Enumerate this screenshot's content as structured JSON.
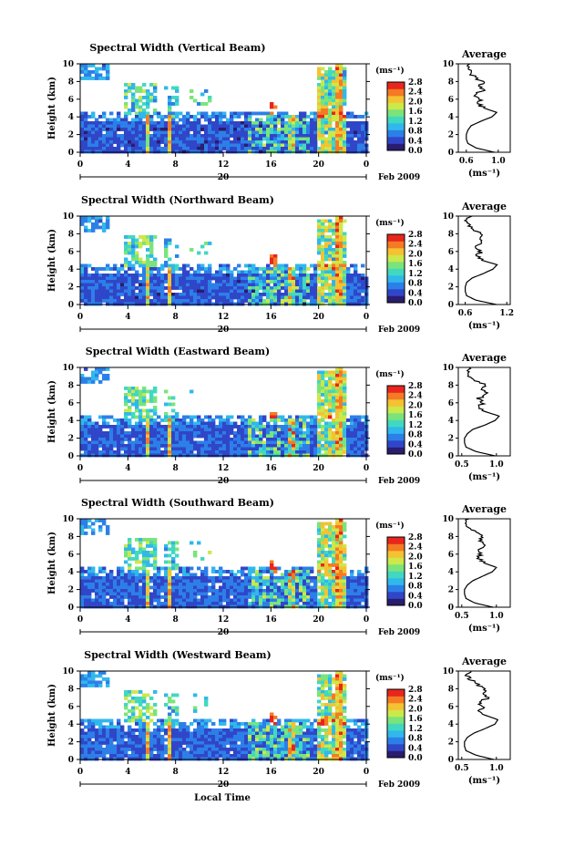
{
  "figure": {
    "xlabel_bottom": "Local Time"
  },
  "colors": {
    "palette": [
      "#2a1c6e",
      "#3046c8",
      "#2d7fe8",
      "#30b8ec",
      "#42d8c0",
      "#7ae47a",
      "#cce84a",
      "#f4c232",
      "#f47a24",
      "#e8261c"
    ]
  },
  "common": {
    "height_label": "Height (km)",
    "height_ticks": [
      "0",
      "2",
      "4",
      "6",
      "8",
      "10"
    ],
    "time_ticks": [
      "0",
      "4",
      "8",
      "12",
      "16",
      "20",
      "0"
    ],
    "date_tick": "20",
    "month_label": "Feb 2009",
    "colorbar_unit": "(ms⁻¹)",
    "colorbar_ticks": [
      "0.0",
      "0.4",
      "0.8",
      "1.2",
      "1.6",
      "2.0",
      "2.4",
      "2.8"
    ],
    "avg_title": "Average",
    "avg_unit": "(ms⁻¹)"
  },
  "chart_data": [
    {
      "type": "heatmap",
      "title": "Spectral Width (Vertical Beam)",
      "xlabel": "",
      "ylabel": "Height (km)",
      "xlim": [
        0,
        24
      ],
      "ylim": [
        0,
        10
      ],
      "zlim": [
        0,
        2.8
      ],
      "profile": {
        "title": "Average",
        "xlabel": "(ms⁻¹)",
        "ylabel": "",
        "xticks": [
          "0.6",
          "1.0"
        ],
        "xlim": [
          0.5,
          1.15
        ],
        "height": [
          0,
          0.5,
          1,
          1.5,
          2,
          2.5,
          3,
          3.5,
          4,
          4.5,
          5,
          5.5,
          6,
          6.5,
          7,
          7.5,
          8,
          8.5,
          9,
          9.5,
          10
        ],
        "value": [
          0.95,
          0.72,
          0.62,
          0.6,
          0.6,
          0.62,
          0.66,
          0.78,
          0.92,
          0.98,
          0.82,
          0.74,
          0.78,
          0.72,
          0.8,
          0.74,
          0.82,
          0.7,
          0.66,
          0.62,
          0.66
        ]
      }
    },
    {
      "type": "heatmap",
      "title": "Spectral Width (Northward Beam)",
      "xlabel": "",
      "ylabel": "Height (km)",
      "xlim": [
        0,
        24
      ],
      "ylim": [
        0,
        10
      ],
      "zlim": [
        0,
        2.8
      ],
      "profile": {
        "title": "Average",
        "xlabel": "(ms⁻¹)",
        "ylabel": "",
        "xticks": [
          "0.6",
          "1.2"
        ],
        "xlim": [
          0.5,
          1.25
        ],
        "height": [
          0,
          0.5,
          1,
          1.5,
          2,
          2.5,
          3,
          3.5,
          4,
          4.5,
          5,
          5.5,
          6,
          6.5,
          7,
          7.5,
          8,
          8.5,
          9,
          9.5,
          10
        ],
        "value": [
          1.05,
          0.75,
          0.62,
          0.6,
          0.6,
          0.62,
          0.7,
          0.86,
          1.0,
          1.06,
          0.84,
          0.78,
          0.82,
          0.76,
          0.86,
          0.78,
          0.84,
          0.72,
          0.66,
          0.62,
          0.7
        ]
      }
    },
    {
      "type": "heatmap",
      "title": "Spectral Width (Eastward Beam)",
      "xlabel": "",
      "ylabel": "Height (km)",
      "xlim": [
        0,
        24
      ],
      "ylim": [
        0,
        10
      ],
      "zlim": [
        0,
        2.8
      ],
      "profile": {
        "title": "Average",
        "xlabel": "(ms⁻¹)",
        "ylabel": "",
        "xticks": [
          "0.5",
          "1.0"
        ],
        "xlim": [
          0.45,
          1.2
        ],
        "height": [
          0,
          0.5,
          1,
          1.5,
          2,
          2.5,
          3,
          3.5,
          4,
          4.5,
          5,
          5.5,
          6,
          6.5,
          7,
          7.5,
          8,
          8.5,
          9,
          9.5,
          10
        ],
        "value": [
          0.98,
          0.7,
          0.56,
          0.54,
          0.54,
          0.58,
          0.66,
          0.84,
          0.98,
          1.04,
          0.84,
          0.76,
          0.8,
          0.74,
          0.88,
          0.8,
          0.86,
          0.7,
          0.62,
          0.58,
          0.62
        ]
      }
    },
    {
      "type": "heatmap",
      "title": "Spectral Width (Southward Beam)",
      "xlabel": "",
      "ylabel": "Height (km)",
      "xlim": [
        0,
        24
      ],
      "ylim": [
        0,
        10
      ],
      "zlim": [
        0,
        2.8
      ],
      "profile": {
        "title": "Average",
        "xlabel": "(ms⁻¹)",
        "ylabel": "",
        "xticks": [
          "0.5",
          "1.0"
        ],
        "xlim": [
          0.45,
          1.2
        ],
        "height": [
          0,
          0.5,
          1,
          1.5,
          2,
          2.5,
          3,
          3.5,
          4,
          4.5,
          5,
          5.5,
          6,
          6.5,
          7,
          7.5,
          8,
          8.5,
          9,
          9.5,
          10
        ],
        "value": [
          0.95,
          0.68,
          0.56,
          0.54,
          0.54,
          0.58,
          0.66,
          0.8,
          0.94,
          1.0,
          0.82,
          0.74,
          0.78,
          0.72,
          0.84,
          0.76,
          0.82,
          0.68,
          0.6,
          0.56,
          0.6
        ]
      }
    },
    {
      "type": "heatmap",
      "title": "Spectral Width (Westward Beam)",
      "xlabel": "",
      "ylabel": "Height (km)",
      "xlim": [
        0,
        24
      ],
      "ylim": [
        0,
        10
      ],
      "zlim": [
        0,
        2.8
      ],
      "profile": {
        "title": "Average",
        "xlabel": "(ms⁻¹)",
        "ylabel": "",
        "xticks": [
          "0.5",
          "1.0"
        ],
        "xlim": [
          0.45,
          1.2
        ],
        "height": [
          0,
          0.5,
          1,
          1.5,
          2,
          2.5,
          3,
          3.5,
          4,
          4.5,
          5,
          5.5,
          6,
          6.5,
          7,
          7.5,
          8,
          8.5,
          9,
          9.5,
          10
        ],
        "value": [
          0.96,
          0.7,
          0.56,
          0.54,
          0.54,
          0.58,
          0.68,
          0.84,
          0.98,
          1.02,
          0.84,
          0.76,
          0.8,
          0.74,
          0.9,
          0.8,
          0.86,
          0.72,
          0.64,
          0.58,
          0.62
        ]
      }
    }
  ]
}
